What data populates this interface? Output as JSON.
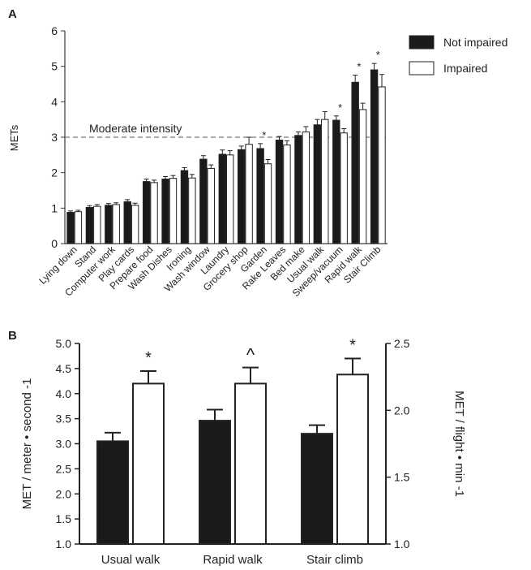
{
  "chart_data": [
    {
      "panel": "A",
      "type": "bar",
      "ylabel": "METs",
      "ylim": [
        0,
        6
      ],
      "yticks": [
        "0",
        "1",
        "2",
        "3",
        "4",
        "5",
        "6"
      ],
      "reference_line": {
        "label": "Moderate intensity",
        "y": 3
      },
      "legend_position": "top-right",
      "categories": [
        "Lying down",
        "Stand",
        "Computer work",
        "Play cards",
        "Prepare food",
        "Wash Dishes",
        "Ironing",
        "Wash window",
        "Laundry",
        "Grocery shop",
        "Garden",
        "Rake Leaves",
        "Bed make",
        "Usual walk",
        "Sweep/vacuum",
        "Rapid walk",
        "Stair Climb"
      ],
      "series": [
        {
          "name": "Not impaired",
          "color": "#1a1a1a",
          "values": [
            0.88,
            1.02,
            1.08,
            1.18,
            1.75,
            1.82,
            2.06,
            2.38,
            2.52,
            2.65,
            2.68,
            2.92,
            3.05,
            3.35,
            3.48,
            4.55,
            4.9
          ],
          "errors": [
            0.04,
            0.05,
            0.05,
            0.06,
            0.07,
            0.07,
            0.08,
            0.1,
            0.12,
            0.1,
            0.14,
            0.1,
            0.1,
            0.15,
            0.12,
            0.2,
            0.18
          ]
        },
        {
          "name": "Impaired",
          "color": "#ffffff",
          "values": [
            0.9,
            1.05,
            1.1,
            1.08,
            1.72,
            1.84,
            1.85,
            2.12,
            2.5,
            2.8,
            2.25,
            2.78,
            3.15,
            3.5,
            3.12,
            3.78,
            4.42
          ],
          "errors": [
            0.04,
            0.05,
            0.05,
            0.06,
            0.07,
            0.08,
            0.1,
            0.1,
            0.12,
            0.2,
            0.12,
            0.12,
            0.15,
            0.22,
            0.12,
            0.18,
            0.35
          ]
        }
      ],
      "significance": [
        {
          "category": "Garden",
          "marker": "*"
        },
        {
          "category": "Sweep/vacuum",
          "marker": "*"
        },
        {
          "category": "Rapid walk",
          "marker": "*"
        },
        {
          "category": "Stair Climb",
          "marker": "*"
        }
      ]
    },
    {
      "panel": "B",
      "type": "bar",
      "ylabel": "MET / meter • second -1",
      "ylabel_right": "MET / flight • min -1",
      "ylim": [
        1.0,
        5.0
      ],
      "ylim_right": [
        1.0,
        2.5
      ],
      "yticks": [
        "1.0",
        "1.5",
        "2.0",
        "2.5",
        "3.0",
        "3.5",
        "4.0",
        "4.5",
        "5.0"
      ],
      "yticks_right": [
        "1.0",
        "1.5",
        "2.0",
        "2.5"
      ],
      "categories": [
        "Usual walk",
        "Rapid walk",
        "Stair climb"
      ],
      "series": [
        {
          "name": "Not impaired",
          "color": "#1a1a1a",
          "values": [
            3.05,
            3.46,
            3.2
          ],
          "errors": [
            0.17,
            0.22,
            0.17
          ]
        },
        {
          "name": "Impaired",
          "color": "#ffffff",
          "values": [
            4.2,
            4.2,
            4.38
          ],
          "errors": [
            0.25,
            0.32,
            0.32
          ]
        }
      ],
      "significance": [
        {
          "category": "Usual walk",
          "marker": "*"
        },
        {
          "category": "Rapid walk",
          "marker": "^"
        },
        {
          "category": "Stair climb",
          "marker": "*"
        }
      ]
    }
  ],
  "panel_labels": {
    "a": "A",
    "b": "B"
  }
}
